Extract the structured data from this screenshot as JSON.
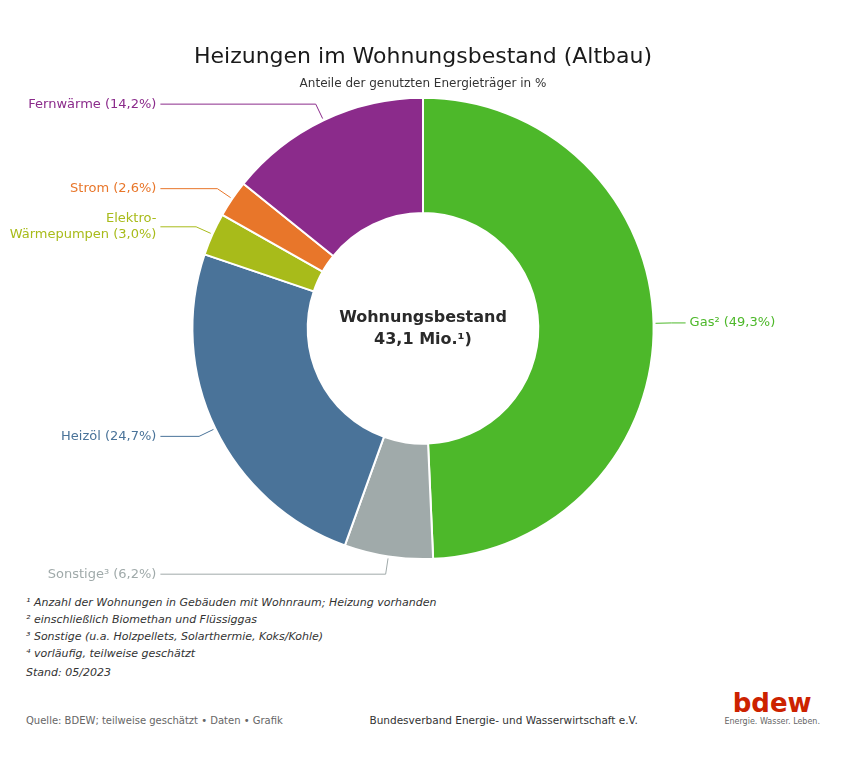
{
  "chart_data": {
    "type": "doughnut",
    "title": "Heizungen im Wohnungsbestand (Altbau)",
    "subtitle": "Anteile der genutzten Energieträger in %",
    "categories": [
      "Gas² (49,3%)",
      "Sonstige³ (6,2%)",
      "Heizöl (24,7%)",
      "Elektro-\nWärmepumpen (3,0%)",
      "Strom (2,6%)",
      "Fernwärme (14,2%)"
    ],
    "values": [
      49.3,
      6.2,
      24.7,
      3.0,
      2.6,
      14.2
    ],
    "colors": [
      "#4db82a",
      "#a0aaaa",
      "#4a7399",
      "#a8bb1a",
      "#e8762a",
      "#8b2b8b"
    ],
    "center_text": [
      "Wohnungsbestand",
      "43,1 Mio.¹)"
    ],
    "footnotes": [
      "¹ Anzahl der Wohnungen in Gebäuden mit Wohnraum; Heizung vorhanden",
      "² einschließlich Biomethan und Flüssiggas",
      "³ Sonstige (u.a. Holzpellets, Solarthermie, Koks/Kohle)",
      "⁴ vorläufig, teilweise geschätzt"
    ],
    "stand": "Stand: 05/2023",
    "source": "Quelle: BDEW; teilweise geschätzt • Daten • Grafik",
    "footer_right": "Bundesverband Energie- und Wasserwirtschaft e.V.",
    "logo": [
      "bdew",
      "Energie. Wasser. Leben."
    ]
  }
}
